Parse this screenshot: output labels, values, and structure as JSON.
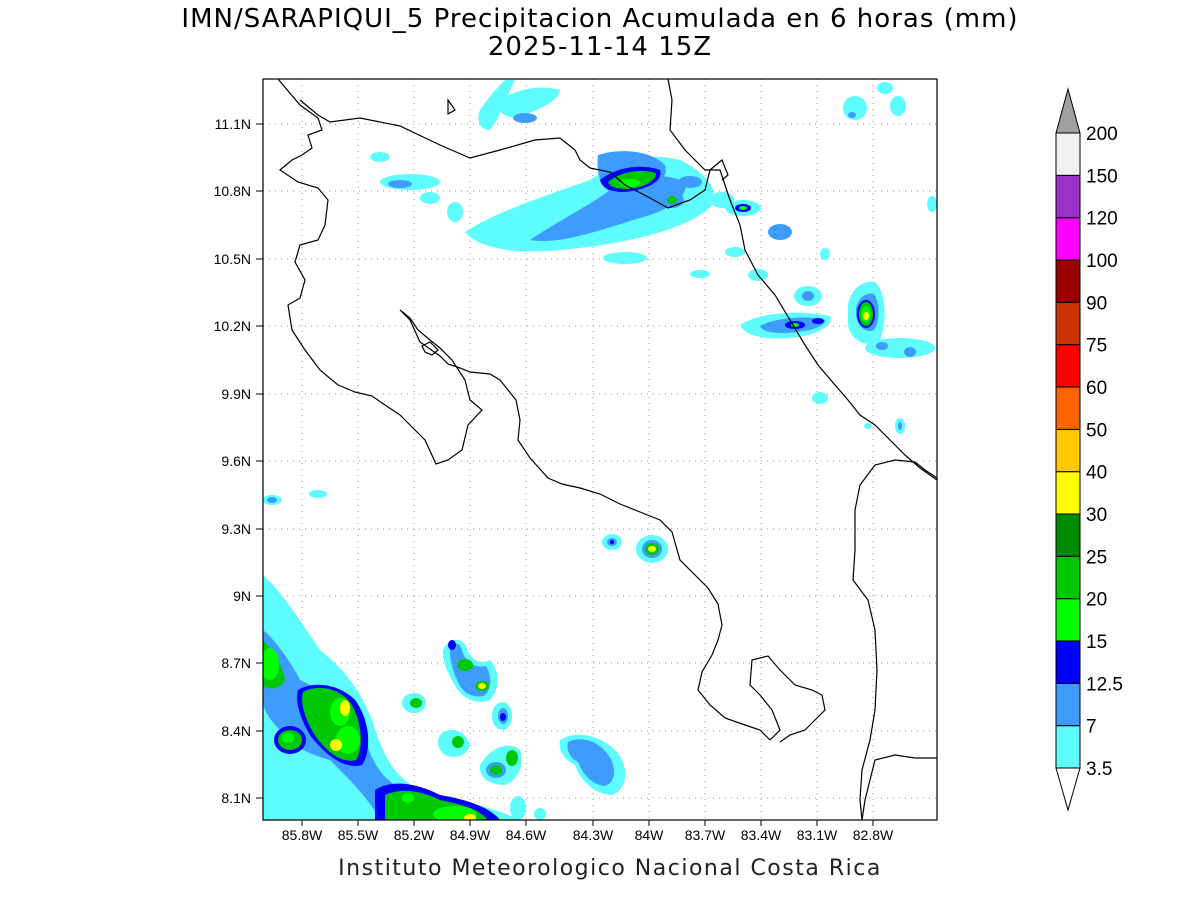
{
  "title": "IMN/SARAPIQUI_5 Precipitacion Acumulada en 6 horas (mm)",
  "subtitle": "2025-11-14 15Z",
  "footer": "Instituto Meteorologico Nacional Costa Rica",
  "map": {
    "lat_ticks": [
      "11.1N",
      "10.8N",
      "10.5N",
      "10.2N",
      "9.9N",
      "9.6N",
      "9.3N",
      "9N",
      "8.7N",
      "8.4N",
      "8.1N"
    ],
    "lon_ticks": [
      "85.8W",
      "85.5W",
      "85.2W",
      "84.9W",
      "84.6W",
      "84.3W",
      "84W",
      "83.7W",
      "83.4W",
      "83.1W",
      "82.8W"
    ],
    "grid": true,
    "colors": {
      "coast": "#000000",
      "grid": "#999999"
    }
  },
  "colorbar": {
    "levels": [
      "3.5",
      "7",
      "12.5",
      "15",
      "20",
      "25",
      "30",
      "40",
      "50",
      "60",
      "75",
      "90",
      "100",
      "120",
      "150",
      "200"
    ],
    "colors": [
      "#ffffff",
      "#5efcfc",
      "#3f9cff",
      "#0000ff",
      "#00ff00",
      "#00c800",
      "#008c00",
      "#ffff00",
      "#ffc800",
      "#ff6400",
      "#ff0000",
      "#cc3300",
      "#990000",
      "#ff00ff",
      "#9933cc",
      "#f0f0f0",
      "#a0a0a0"
    ]
  }
}
